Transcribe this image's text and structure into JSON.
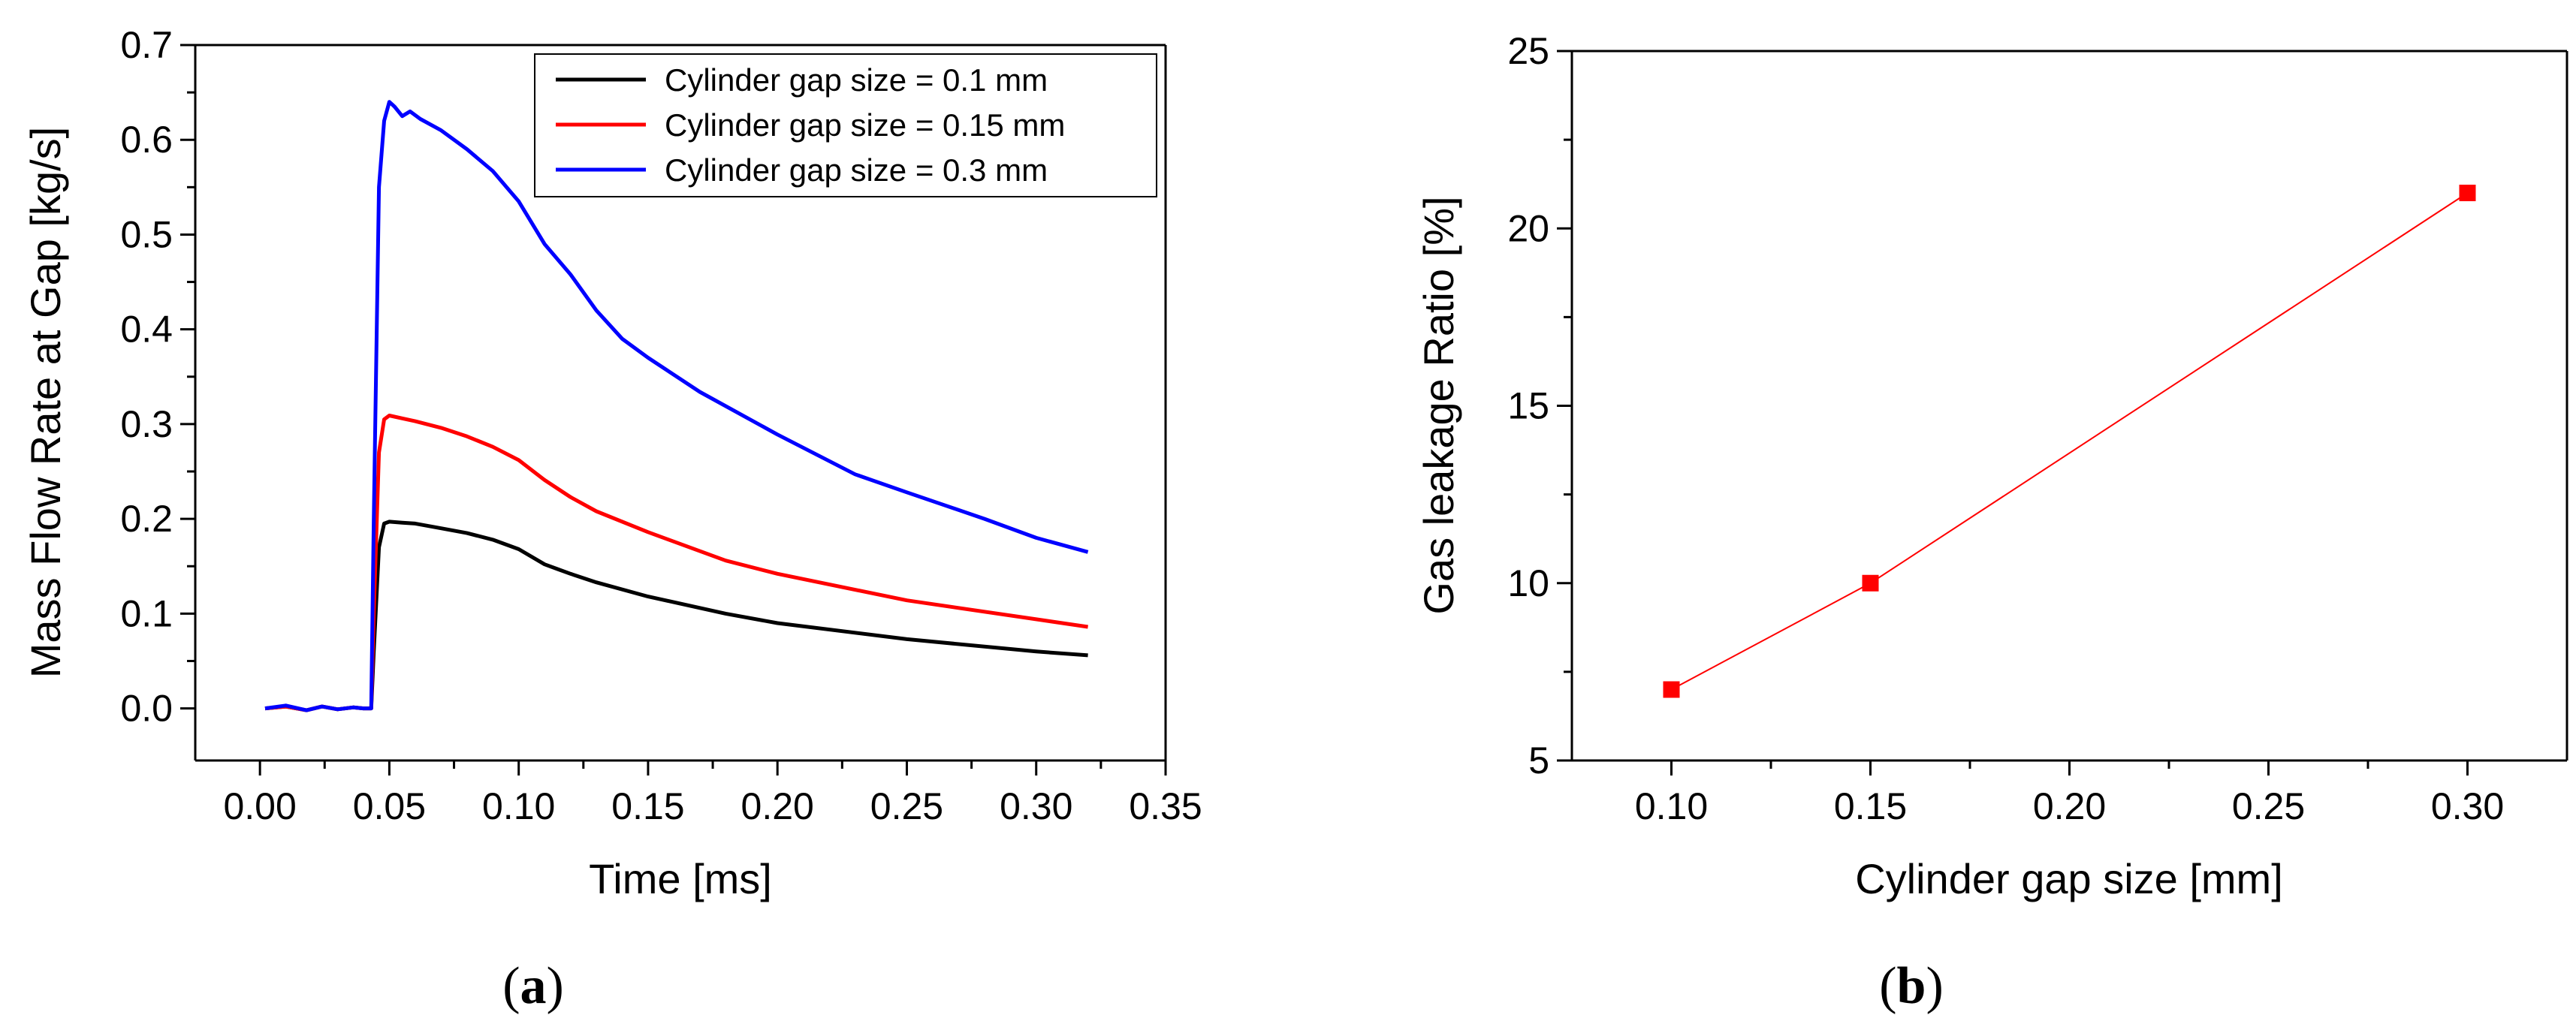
{
  "chart_data": [
    {
      "panel": "(a)",
      "panel_prefix": "(",
      "panel_letter": "a",
      "panel_suffix": ")",
      "type": "line",
      "title": "",
      "xlabel": "Time [ms]",
      "ylabel": "Mass Flow Rate at Gap [kg/s]",
      "xlim": [
        -0.025,
        0.35
      ],
      "ylim": [
        -0.055,
        0.7
      ],
      "xticks": [
        0.0,
        0.05,
        0.1,
        0.15,
        0.2,
        0.25,
        0.3,
        0.35
      ],
      "xtick_labels": [
        "0.00",
        "0.05",
        "0.10",
        "0.15",
        "0.20",
        "0.25",
        "0.30",
        "0.35"
      ],
      "yticks": [
        0.0,
        0.1,
        0.2,
        0.3,
        0.4,
        0.5,
        0.6,
        0.7
      ],
      "ytick_labels": [
        "0.0",
        "0.1",
        "0.2",
        "0.3",
        "0.4",
        "0.5",
        "0.6",
        "0.7"
      ],
      "legend_position": "top-right",
      "series": [
        {
          "name": "Cylinder gap size = 0.1 mm",
          "color": "#000000",
          "x": [
            0.002,
            0.01,
            0.018,
            0.024,
            0.03,
            0.036,
            0.04,
            0.043,
            0.044,
            0.046,
            0.048,
            0.05,
            0.055,
            0.06,
            0.07,
            0.08,
            0.09,
            0.1,
            0.11,
            0.115,
            0.12,
            0.13,
            0.15,
            0.18,
            0.2,
            0.25,
            0.3,
            0.32
          ],
          "y": [
            0.0,
            0.002,
            -0.002,
            0.002,
            -0.001,
            0.001,
            0.0,
            0.0,
            0.06,
            0.17,
            0.195,
            0.197,
            0.196,
            0.195,
            0.19,
            0.185,
            0.178,
            0.168,
            0.152,
            0.147,
            0.142,
            0.133,
            0.118,
            0.1,
            0.09,
            0.073,
            0.06,
            0.056
          ]
        },
        {
          "name": "Cylinder gap size = 0.15 mm",
          "color": "#ff0000",
          "x": [
            0.002,
            0.01,
            0.018,
            0.024,
            0.03,
            0.036,
            0.04,
            0.043,
            0.044,
            0.046,
            0.048,
            0.05,
            0.055,
            0.06,
            0.07,
            0.08,
            0.09,
            0.1,
            0.11,
            0.12,
            0.13,
            0.15,
            0.18,
            0.2,
            0.25,
            0.3,
            0.32
          ],
          "y": [
            0.0,
            0.002,
            -0.002,
            0.002,
            -0.001,
            0.001,
            0.0,
            0.0,
            0.1,
            0.27,
            0.305,
            0.309,
            0.306,
            0.303,
            0.296,
            0.287,
            0.276,
            0.262,
            0.241,
            0.223,
            0.208,
            0.186,
            0.156,
            0.142,
            0.114,
            0.094,
            0.086
          ]
        },
        {
          "name": "Cylinder gap size = 0.3 mm",
          "color": "#0000ff",
          "x": [
            0.002,
            0.01,
            0.018,
            0.024,
            0.03,
            0.036,
            0.04,
            0.043,
            0.044,
            0.046,
            0.048,
            0.05,
            0.052,
            0.055,
            0.058,
            0.062,
            0.07,
            0.08,
            0.09,
            0.1,
            0.11,
            0.12,
            0.13,
            0.14,
            0.15,
            0.17,
            0.2,
            0.23,
            0.25,
            0.28,
            0.3,
            0.32
          ],
          "y": [
            0.0,
            0.003,
            -0.002,
            0.002,
            -0.001,
            0.001,
            0.0,
            0.0,
            0.2,
            0.55,
            0.62,
            0.64,
            0.635,
            0.625,
            0.63,
            0.622,
            0.61,
            0.59,
            0.567,
            0.535,
            0.49,
            0.458,
            0.42,
            0.39,
            0.37,
            0.334,
            0.289,
            0.247,
            0.228,
            0.2,
            0.18,
            0.165
          ]
        }
      ]
    },
    {
      "panel": "(b)",
      "panel_prefix": "(",
      "panel_letter": "b",
      "panel_suffix": ")",
      "type": "line",
      "title": "",
      "xlabel": "Cylinder gap size [mm]",
      "ylabel": "Gas leakage Ratio [%]",
      "xlim": [
        0.075,
        0.325
      ],
      "ylim": [
        5,
        25
      ],
      "xticks": [
        0.1,
        0.15,
        0.2,
        0.25,
        0.3
      ],
      "xtick_labels": [
        "0.10",
        "0.15",
        "0.20",
        "0.25",
        "0.30"
      ],
      "yticks": [
        5,
        10,
        15,
        20,
        25
      ],
      "ytick_labels": [
        "5",
        "10",
        "15",
        "20",
        "25"
      ],
      "series": [
        {
          "name": "Gas leakage ratio",
          "color": "#ff0000",
          "marker": "square",
          "x": [
            0.1,
            0.15,
            0.3
          ],
          "y": [
            7,
            10,
            21
          ]
        }
      ]
    }
  ]
}
